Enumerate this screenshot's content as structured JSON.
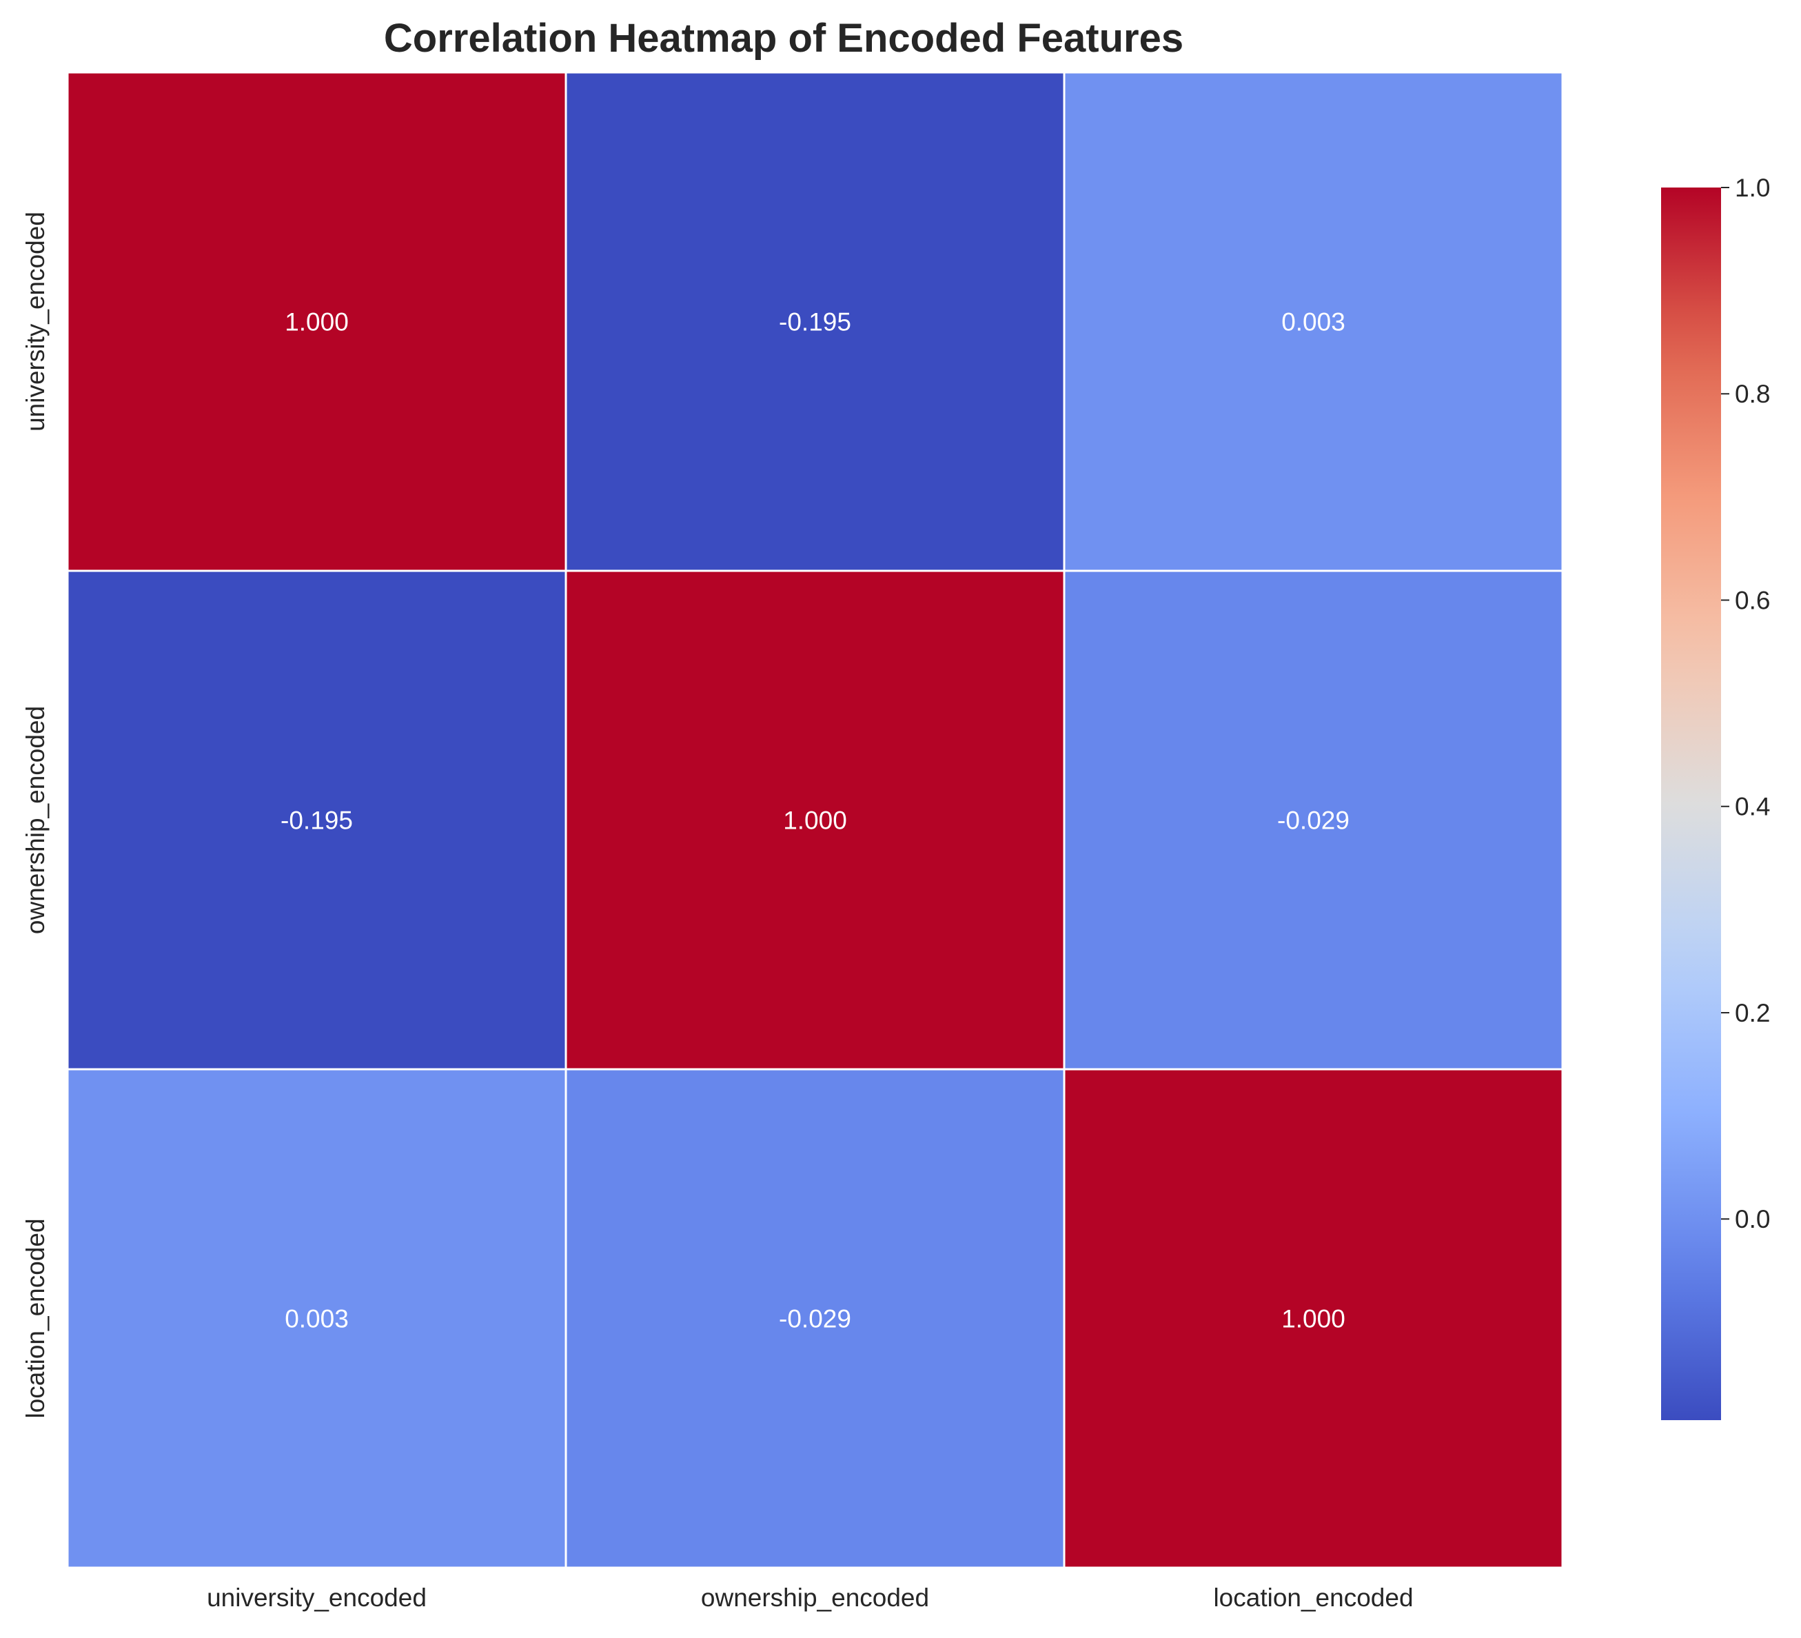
{
  "chart_data": {
    "type": "heatmap",
    "title": "Correlation Heatmap of Encoded Features",
    "x_categories": [
      "university_encoded",
      "ownership_encoded",
      "location_encoded"
    ],
    "y_categories": [
      "university_encoded",
      "ownership_encoded",
      "location_encoded"
    ],
    "values": [
      [
        1.0,
        -0.195,
        0.003
      ],
      [
        -0.195,
        1.0,
        -0.029
      ],
      [
        0.003,
        -0.029,
        1.0
      ]
    ],
    "annotations": [
      [
        "1.000",
        "-0.195",
        "0.003"
      ],
      [
        "-0.195",
        "1.000",
        "-0.029"
      ],
      [
        "0.003",
        "-0.029",
        "1.000"
      ]
    ],
    "colormap": "coolwarm",
    "vmin": -0.195,
    "vmax": 1.0,
    "colorbar": {
      "ticks": [
        0.0,
        0.2,
        0.4,
        0.6,
        0.8,
        1.0
      ],
      "tick_labels": [
        "0.0",
        "0.2",
        "0.4",
        "0.6",
        "0.8",
        "1.0"
      ],
      "placement": "right"
    },
    "cell_border_color": "#ffffff",
    "annotation_color": "#ffffff"
  }
}
